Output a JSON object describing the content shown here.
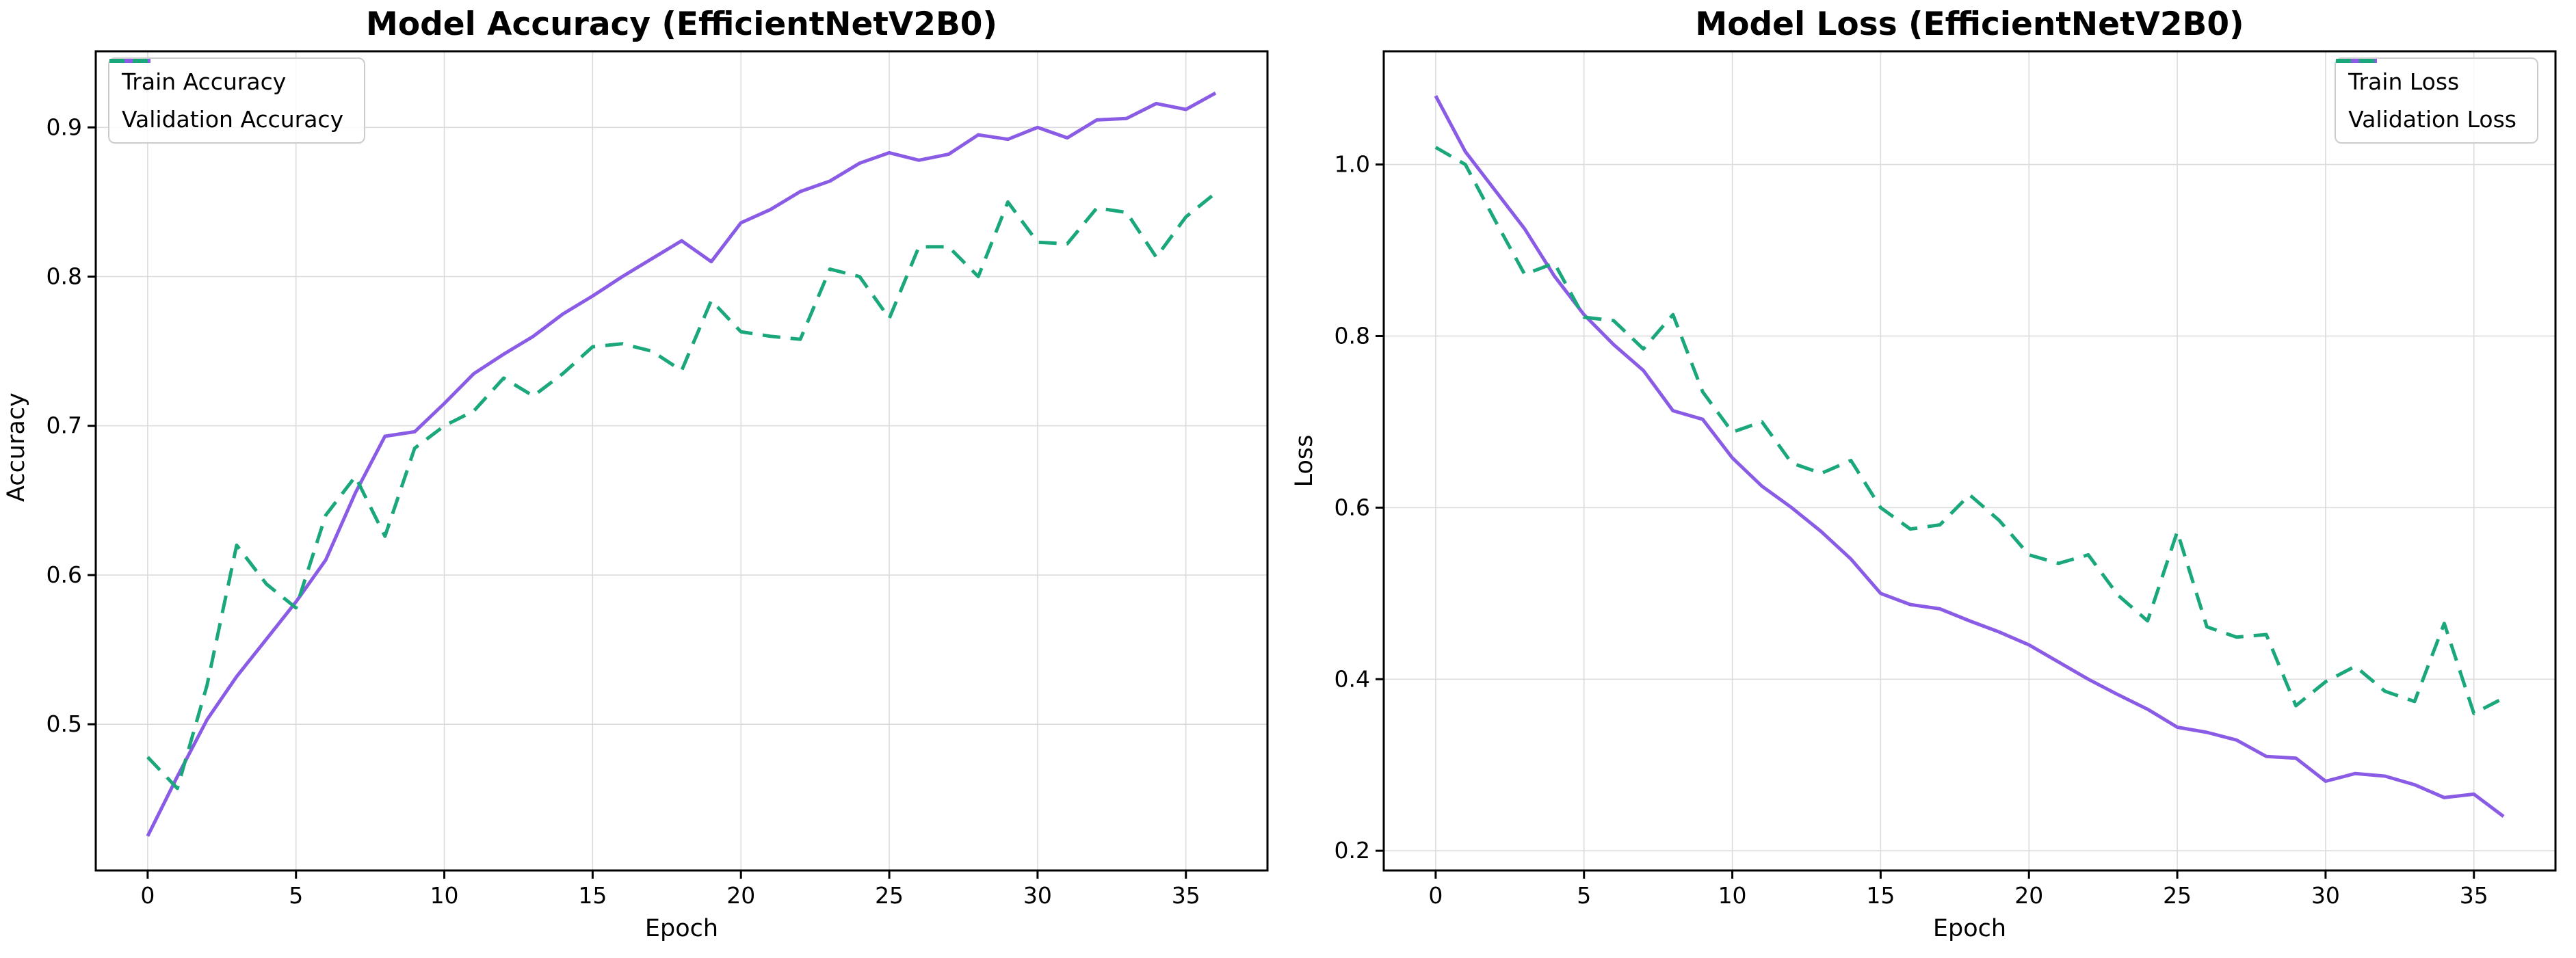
{
  "figure": {
    "background": "#ffffff",
    "grid_color": "#dcdcdc",
    "spine_color": "#000000"
  },
  "chart_data": [
    {
      "type": "line",
      "title": "Model Accuracy (EfficientNetV2B0)",
      "xlabel": "Epoch",
      "ylabel": "Accuracy",
      "grid": true,
      "legend_position": "upper-left",
      "xlim": [
        -1.75,
        37.75
      ],
      "ylim": [
        0.402,
        0.951
      ],
      "xticks": [
        0,
        5,
        10,
        15,
        20,
        25,
        30,
        35
      ],
      "yticks": [
        0.5,
        0.6,
        0.7,
        0.8,
        0.9
      ],
      "x": [
        0,
        1,
        2,
        3,
        4,
        5,
        6,
        7,
        8,
        9,
        10,
        11,
        12,
        13,
        14,
        15,
        16,
        17,
        18,
        19,
        20,
        21,
        22,
        23,
        24,
        25,
        26,
        27,
        28,
        29,
        30,
        31,
        32,
        33,
        34,
        35,
        36
      ],
      "series": [
        {
          "name": "Train Accuracy",
          "color": "#8a5ce6",
          "style": "solid",
          "values": [
            0.425,
            0.465,
            0.503,
            0.532,
            0.557,
            0.582,
            0.61,
            0.655,
            0.693,
            0.696,
            0.715,
            0.735,
            0.748,
            0.76,
            0.775,
            0.787,
            0.8,
            0.812,
            0.824,
            0.81,
            0.836,
            0.845,
            0.857,
            0.864,
            0.876,
            0.883,
            0.878,
            0.882,
            0.895,
            0.892,
            0.9,
            0.893,
            0.905,
            0.906,
            0.916,
            0.912,
            0.923
          ]
        },
        {
          "name": "Validation Accuracy",
          "color": "#19a77b",
          "style": "dashed",
          "values": [
            0.478,
            0.457,
            0.526,
            0.62,
            0.594,
            0.578,
            0.64,
            0.666,
            0.626,
            0.685,
            0.7,
            0.71,
            0.732,
            0.72,
            0.735,
            0.753,
            0.755,
            0.75,
            0.737,
            0.784,
            0.763,
            0.76,
            0.758,
            0.805,
            0.8,
            0.772,
            0.82,
            0.82,
            0.8,
            0.85,
            0.823,
            0.822,
            0.846,
            0.843,
            0.813,
            0.84,
            0.856
          ]
        }
      ]
    },
    {
      "type": "line",
      "title": "Model Loss (EfficientNetV2B0)",
      "xlabel": "Epoch",
      "ylabel": "Loss",
      "grid": true,
      "legend_position": "upper-right",
      "xlim": [
        -1.75,
        37.75
      ],
      "ylim": [
        0.177,
        1.132
      ],
      "xticks": [
        0,
        5,
        10,
        15,
        20,
        25,
        30,
        35
      ],
      "yticks": [
        0.2,
        0.4,
        0.6,
        0.8,
        1.0
      ],
      "x": [
        0,
        1,
        2,
        3,
        4,
        5,
        6,
        7,
        8,
        9,
        10,
        11,
        12,
        13,
        14,
        15,
        16,
        17,
        18,
        19,
        20,
        21,
        22,
        23,
        24,
        25,
        26,
        27,
        28,
        29,
        30,
        31,
        32,
        33,
        34,
        35,
        36
      ],
      "series": [
        {
          "name": "Train Loss",
          "color": "#8a5ce6",
          "style": "solid",
          "values": [
            1.08,
            1.015,
            0.97,
            0.925,
            0.87,
            0.825,
            0.79,
            0.76,
            0.713,
            0.703,
            0.658,
            0.625,
            0.6,
            0.572,
            0.54,
            0.5,
            0.487,
            0.482,
            0.468,
            0.455,
            0.44,
            0.42,
            0.4,
            0.382,
            0.365,
            0.344,
            0.338,
            0.329,
            0.31,
            0.308,
            0.281,
            0.29,
            0.287,
            0.277,
            0.262,
            0.266,
            0.24
          ]
        },
        {
          "name": "Validation Loss",
          "color": "#19a77b",
          "style": "dashed",
          "values": [
            1.02,
            1.0,
            0.935,
            0.872,
            0.885,
            0.822,
            0.818,
            0.785,
            0.825,
            0.735,
            0.688,
            0.7,
            0.652,
            0.64,
            0.655,
            0.6,
            0.575,
            0.58,
            0.615,
            0.585,
            0.545,
            0.535,
            0.545,
            0.498,
            0.468,
            0.572,
            0.461,
            0.449,
            0.452,
            0.369,
            0.397,
            0.415,
            0.386,
            0.374,
            0.465,
            0.36,
            0.378
          ]
        }
      ]
    }
  ]
}
